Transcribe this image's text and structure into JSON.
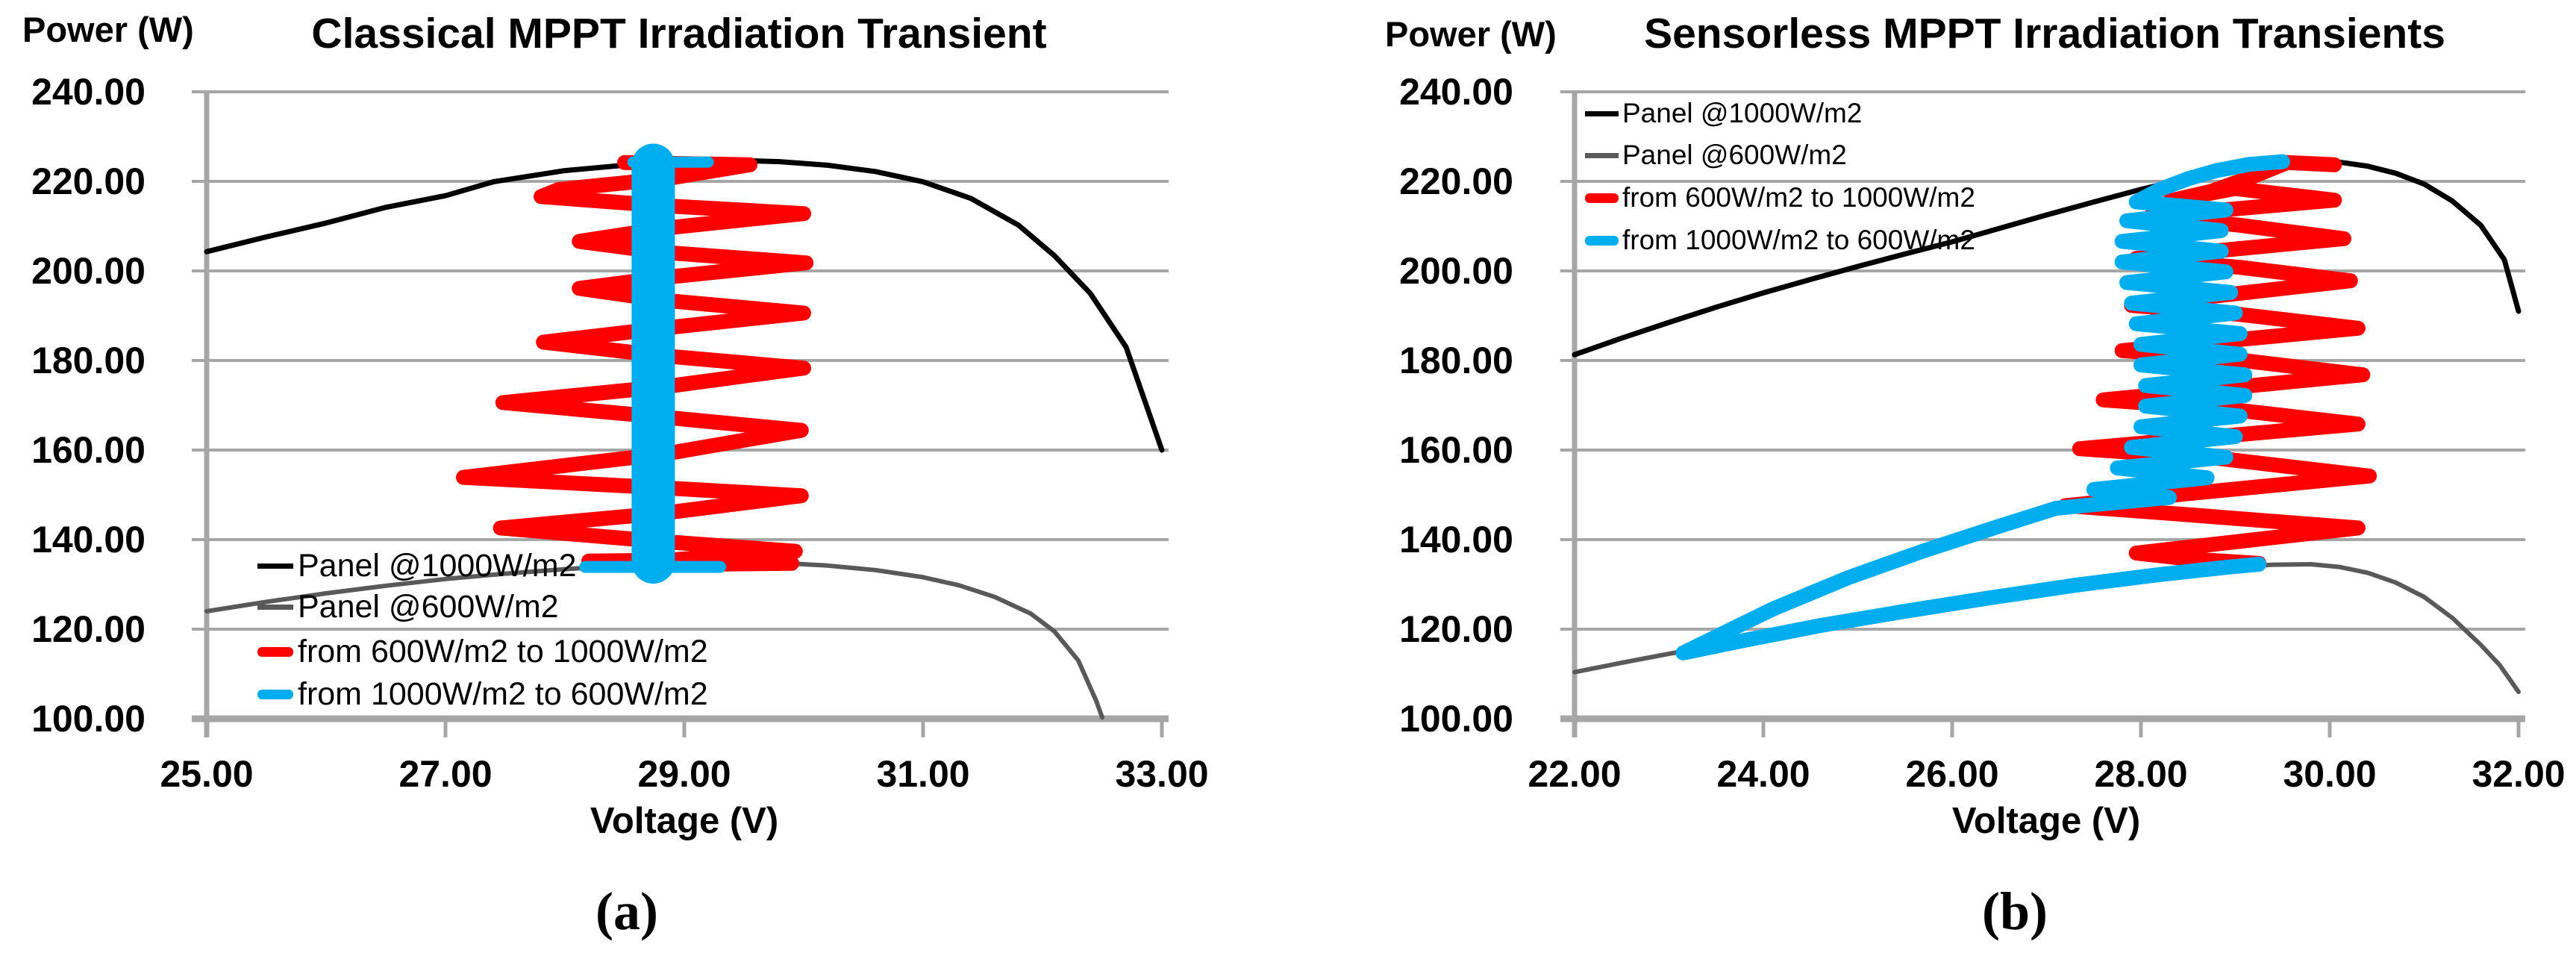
{
  "figure": {
    "background": "#ffffff",
    "captions": {
      "a": "(a)",
      "b": "(b)"
    }
  },
  "colors": {
    "panel_1000": "#000000",
    "panel_600": "#595959",
    "transient_up": "#ff0000",
    "transient_down": "#00aeef",
    "gridline": "#a6a6a6",
    "text": "#000000"
  },
  "chart_data": [
    {
      "type": "line",
      "title": "Classical MPPT Irradiation Transient",
      "xlabel": "Voltage (V)",
      "ylabel": "Power (W)",
      "caption": "(a)",
      "xlim": [
        25,
        33
      ],
      "ylim": [
        100,
        240
      ],
      "grid": true,
      "legend_position": "inside-lower-left",
      "x_ticks": [
        "25.00",
        "27.00",
        "29.00",
        "31.00",
        "33.00"
      ],
      "y_ticks": [
        "240.00",
        "220.00",
        "200.00",
        "180.00",
        "160.00",
        "140.00",
        "120.00",
        "100.00"
      ],
      "series": [
        {
          "name": "Panel @1000W/m2",
          "color": "#000000",
          "width": 7,
          "in_legend": true,
          "points": [
            [
              25,
              204.3
            ],
            [
              25.5,
              207.6
            ],
            [
              26,
              210.7
            ],
            [
              26.5,
              214.2
            ],
            [
              27,
              216.8
            ],
            [
              27.4,
              219.9
            ],
            [
              28,
              222.4
            ],
            [
              28.5,
              223.6
            ],
            [
              29,
              224.4
            ],
            [
              29.4,
              224.7
            ],
            [
              29.8,
              224.4
            ],
            [
              30.2,
              223.6
            ],
            [
              30.6,
              222.2
            ],
            [
              31,
              219.9
            ],
            [
              31.4,
              216.2
            ],
            [
              31.8,
              210.2
            ],
            [
              32.1,
              203.4
            ],
            [
              32.4,
              195
            ],
            [
              32.7,
              183
            ],
            [
              33,
              160
            ]
          ]
        },
        {
          "name": "Panel @600W/m2",
          "color": "#595959",
          "width": 6,
          "in_legend": true,
          "points": [
            [
              25,
              124
            ],
            [
              25.5,
              126.1
            ],
            [
              26,
              128
            ],
            [
              26.5,
              129.7
            ],
            [
              27,
              131.2
            ],
            [
              27.5,
              132.4
            ],
            [
              28,
              133.4
            ],
            [
              28.5,
              134.2
            ],
            [
              29,
              134.7
            ],
            [
              29.4,
              134.9
            ],
            [
              29.8,
              134.8
            ],
            [
              30.2,
              134.2
            ],
            [
              30.6,
              133.2
            ],
            [
              31,
              131.6
            ],
            [
              31.3,
              129.8
            ],
            [
              31.6,
              127.2
            ],
            [
              31.9,
              123.5
            ],
            [
              32.1,
              119.5
            ],
            [
              32.3,
              113
            ],
            [
              32.45,
              104
            ],
            [
              32.5,
              100.3
            ]
          ]
        },
        {
          "name": "from 600W/m2 to 1000W/m2",
          "color": "#ff0000",
          "width": 20,
          "in_legend": true,
          "points": [
            [
              28.5,
              224.2
            ],
            [
              29.55,
              223.7
            ],
            [
              28.85,
              220.6
            ],
            [
              27.95,
              218.2
            ],
            [
              27.8,
              216.6
            ],
            [
              28.8,
              214.6
            ],
            [
              30.0,
              212.8
            ],
            [
              28.85,
              209.6
            ],
            [
              28.12,
              206.6
            ],
            [
              28.8,
              204.2
            ],
            [
              30.02,
              201.8
            ],
            [
              28.85,
              198.6
            ],
            [
              28.12,
              196.1
            ],
            [
              28.8,
              193.5
            ],
            [
              30.0,
              190.6
            ],
            [
              28.85,
              187.3
            ],
            [
              27.82,
              184.1
            ],
            [
              28.8,
              181.1
            ],
            [
              30.0,
              178.3
            ],
            [
              28.85,
              174.2
            ],
            [
              27.48,
              170.6
            ],
            [
              28.8,
              167.4
            ],
            [
              29.98,
              164.4
            ],
            [
              28.85,
              159.2
            ],
            [
              27.15,
              153.9
            ],
            [
              28.8,
              151.6
            ],
            [
              29.98,
              149.8
            ],
            [
              28.85,
              146
            ],
            [
              27.46,
              142.6
            ],
            [
              28.8,
              139.6
            ],
            [
              29.93,
              137.4
            ],
            [
              28.85,
              135.4
            ],
            [
              28.2,
              135.2
            ],
            [
              28.8,
              134.4
            ],
            [
              29.9,
              134.7
            ]
          ]
        },
        {
          "name": "from 1000W/m2 to 600W/m2",
          "color": "#00aeef",
          "width": 58,
          "in_legend": true,
          "points": [
            [
              28.74,
              135
            ],
            [
              28.74,
              223.6
            ]
          ]
        },
        {
          "name": "transition-band-top-cap",
          "color": "#00aeef",
          "width": 15,
          "in_legend": false,
          "points": [
            [
              28.57,
              224.3
            ],
            [
              29.2,
              224.3
            ]
          ]
        },
        {
          "name": "transition-band-bottom-cap",
          "color": "#00aeef",
          "width": 16,
          "in_legend": false,
          "points": [
            [
              28.17,
              133.9
            ],
            [
              29.3,
              133.9
            ]
          ]
        }
      ]
    },
    {
      "type": "line",
      "title": "Sensorless MPPT Irradiation Transients",
      "xlabel": "Voltage (V)",
      "ylabel": "Power (W)",
      "caption": "(b)",
      "xlim": [
        22,
        32
      ],
      "ylim": [
        100,
        240
      ],
      "grid": true,
      "legend_position": "inside-upper-left",
      "x_ticks": [
        "22.00",
        "24.00",
        "26.00",
        "28.00",
        "30.00",
        "32.00"
      ],
      "y_ticks": [
        "240.00",
        "220.00",
        "200.00",
        "180.00",
        "160.00",
        "140.00",
        "120.00",
        "100.00"
      ],
      "series": [
        {
          "name": "Panel @1000W/m2",
          "color": "#000000",
          "width": 7,
          "in_legend": true,
          "points": [
            [
              22,
              181.3
            ],
            [
              22.5,
              185
            ],
            [
              23,
              188.5
            ],
            [
              23.5,
              191.9
            ],
            [
              24,
              195.1
            ],
            [
              24.5,
              198.1
            ],
            [
              25,
              201
            ],
            [
              25.5,
              203.8
            ],
            [
              26,
              206.5
            ],
            [
              26.5,
              209.5
            ],
            [
              27,
              212.5
            ],
            [
              27.5,
              215.4
            ],
            [
              28,
              218.2
            ],
            [
              28.5,
              220.7
            ],
            [
              29,
              222.8
            ],
            [
              29.4,
              224.1
            ],
            [
              29.8,
              224.6
            ],
            [
              30.1,
              224.3
            ],
            [
              30.4,
              223.4
            ],
            [
              30.7,
              221.8
            ],
            [
              31,
              219.4
            ],
            [
              31.3,
              215.6
            ],
            [
              31.6,
              210.2
            ],
            [
              31.85,
              202.5
            ],
            [
              32,
              191
            ]
          ]
        },
        {
          "name": "Panel @600W/m2",
          "color": "#595959",
          "width": 6,
          "in_legend": true,
          "points": [
            [
              22,
              110.4
            ],
            [
              22.5,
              112.5
            ],
            [
              23,
              114.5
            ],
            [
              23.5,
              116.4
            ],
            [
              24,
              118.4
            ],
            [
              24.5,
              120.3
            ],
            [
              25,
              122.2
            ],
            [
              25.5,
              124
            ],
            [
              26,
              125.8
            ],
            [
              26.5,
              127.4
            ],
            [
              27,
              129
            ],
            [
              27.5,
              130.5
            ],
            [
              28,
              131.9
            ],
            [
              28.5,
              133
            ],
            [
              29,
              133.9
            ],
            [
              29.4,
              134.4
            ],
            [
              29.8,
              134.5
            ],
            [
              30.1,
              133.9
            ],
            [
              30.4,
              132.6
            ],
            [
              30.7,
              130.4
            ],
            [
              31,
              127.2
            ],
            [
              31.3,
              122.5
            ],
            [
              31.6,
              116.5
            ],
            [
              31.8,
              112
            ],
            [
              32,
              106
            ]
          ]
        },
        {
          "name": "from 600W/m2 to 1000W/m2",
          "color": "#ff0000",
          "width": 20,
          "in_legend": true,
          "points": [
            [
              29.25,
              134.7
            ],
            [
              28.55,
              135.6
            ],
            [
              27.95,
              137
            ],
            [
              30.3,
              142.6
            ],
            [
              28.6,
              145.4
            ],
            [
              27.2,
              147.6
            ],
            [
              30.42,
              154.2
            ],
            [
              28.8,
              158.2
            ],
            [
              27.35,
              160.3
            ],
            [
              30.3,
              165.8
            ],
            [
              28.9,
              169.2
            ],
            [
              27.6,
              171.2
            ],
            [
              30.35,
              176.8
            ],
            [
              29.0,
              180.2
            ],
            [
              27.8,
              182.2
            ],
            [
              30.3,
              187.2
            ],
            [
              29.0,
              190.4
            ],
            [
              27.9,
              192.3
            ],
            [
              30.22,
              197.8
            ],
            [
              29.05,
              200.8
            ],
            [
              27.95,
              202.8
            ],
            [
              30.15,
              207.2
            ],
            [
              29.05,
              210.2
            ],
            [
              28.1,
              212.2
            ],
            [
              30.05,
              215.8
            ],
            [
              29.0,
              218.4
            ],
            [
              28.3,
              215.6
            ],
            [
              28.75,
              217.8
            ],
            [
              29.2,
              221.2
            ],
            [
              29.55,
              224.2
            ],
            [
              30.05,
              223.7
            ]
          ]
        },
        {
          "name": "from 1000W/m2 to 600W/m2",
          "color": "#00aeef",
          "width": 20,
          "in_legend": true,
          "points": [
            [
              29.5,
              224.4
            ],
            [
              29.15,
              223.8
            ],
            [
              28.8,
              222.4
            ],
            [
              28.5,
              220.6
            ],
            [
              28.2,
              218.2
            ],
            [
              27.95,
              215.4
            ],
            [
              28.9,
              213.6
            ],
            [
              27.85,
              211.2
            ],
            [
              28.85,
              209
            ],
            [
              27.8,
              206.6
            ],
            [
              28.85,
              204.4
            ],
            [
              27.8,
              202
            ],
            [
              28.9,
              199.8
            ],
            [
              27.85,
              197.4
            ],
            [
              28.95,
              195.2
            ],
            [
              27.9,
              192.8
            ],
            [
              29.0,
              190.6
            ],
            [
              27.95,
              188.2
            ],
            [
              29.05,
              186
            ],
            [
              28.0,
              183.6
            ],
            [
              29.05,
              181.4
            ],
            [
              28.0,
              179
            ],
            [
              29.1,
              176.8
            ],
            [
              28.05,
              174.4
            ],
            [
              29.1,
              172.2
            ],
            [
              28.05,
              169.8
            ],
            [
              29.05,
              167.6
            ],
            [
              28.0,
              165.2
            ],
            [
              29.0,
              163
            ],
            [
              27.9,
              160.6
            ],
            [
              28.9,
              158.4
            ],
            [
              27.75,
              156
            ],
            [
              28.7,
              153.8
            ],
            [
              27.5,
              151.2
            ],
            [
              28.3,
              149.4
            ],
            [
              27.1,
              147
            ],
            [
              26.5,
              143
            ],
            [
              25.7,
              137.5
            ],
            [
              24.9,
              131.5
            ],
            [
              24.1,
              124.5
            ],
            [
              23.45,
              117.8
            ],
            [
              23.15,
              114.7
            ],
            [
              23.8,
              117.5
            ],
            [
              24.6,
              120.8
            ],
            [
              25.5,
              124
            ],
            [
              26.4,
              127
            ],
            [
              27.3,
              129.8
            ],
            [
              28.2,
              132.2
            ],
            [
              28.9,
              133.8
            ],
            [
              29.25,
              134.5
            ]
          ]
        }
      ]
    }
  ]
}
